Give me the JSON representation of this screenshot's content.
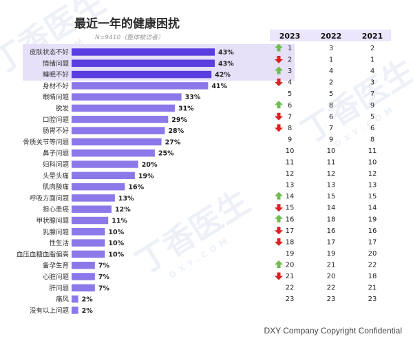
{
  "title": "最近一年的健康困扰",
  "subtitle": "N=9410（整体被访者）",
  "footer": "DXY Company Copyright Confidential",
  "watermark": {
    "text": "丁香医生",
    "sub": "DXY.COM"
  },
  "colors": {
    "bar_top": "#5b3ee0",
    "bar": "#8c78e8",
    "up": "#6cc04a",
    "down": "#e02020",
    "highlight": "#e6e0f8"
  },
  "chart_data": {
    "type": "bar",
    "orientation": "horizontal",
    "title": "最近一年的健康困扰",
    "subtitle": "N=9410（整体被访者）",
    "categories": [
      "皮肤状态不好",
      "情绪问题",
      "睡眠不好",
      "身材不好",
      "眼睛问题",
      "脱发",
      "口腔问题",
      "肠胃不好",
      "骨质关节等问题",
      "鼻子问题",
      "妇科问题",
      "头晕头痛",
      "肌肉酸痛",
      "呼吸方面问题",
      "担心患癌",
      "甲状腺问题",
      "乳腺问题",
      "性生活",
      "血压血糖血脂偏高",
      "备孕生育",
      "心脏问题",
      "肝问题",
      "痛风",
      "没有以上问题"
    ],
    "values": [
      43,
      43,
      42,
      41,
      33,
      31,
      29,
      28,
      27,
      25,
      20,
      19,
      16,
      13,
      12,
      11,
      10,
      10,
      10,
      7,
      7,
      7,
      2,
      2
    ],
    "value_labels": [
      "43%",
      "43%",
      "42%",
      "41%",
      "33%",
      "31%",
      "29%",
      "28%",
      "27%",
      "25%",
      "20%",
      "19%",
      "16%",
      "13%",
      "12%",
      "11%",
      "10%",
      "10%",
      "10%",
      "7%",
      "7%",
      "7%",
      "2%",
      "2%"
    ],
    "unit": "%",
    "xlim": [
      0,
      43
    ],
    "highlighted_count": 3,
    "rank_table": {
      "columns": [
        "2023",
        "2022",
        "2021"
      ],
      "ranks_2023": [
        "1",
        "2",
        "3",
        "4",
        "5",
        "6",
        "7",
        "8",
        "9",
        "10",
        "11",
        "12",
        "13",
        "14",
        "15",
        "16",
        "17",
        "18",
        "19",
        "20",
        "21",
        "22",
        "23"
      ],
      "ranks_2022": [
        "3",
        "1",
        "4",
        "2",
        "5",
        "8",
        "6",
        "7",
        "9",
        "10",
        "11",
        "12",
        "13",
        "15",
        "14",
        "18",
        "16",
        "17",
        "19",
        "21",
        "20",
        "22",
        "23"
      ],
      "ranks_2021": [
        "2",
        "1",
        "4",
        "3",
        "7",
        "9",
        "5",
        "6",
        "8",
        "11",
        "10",
        "12",
        "13",
        "15",
        "14",
        "19",
        "16",
        "17",
        "20",
        "22",
        "18",
        "21",
        "23"
      ],
      "trend": [
        "up",
        "down",
        "up",
        "down",
        "",
        "up",
        "down",
        "down",
        "",
        "",
        "",
        "",
        "",
        "up",
        "down",
        "up",
        "down",
        "down",
        "",
        "up",
        "down",
        "",
        ""
      ]
    }
  }
}
